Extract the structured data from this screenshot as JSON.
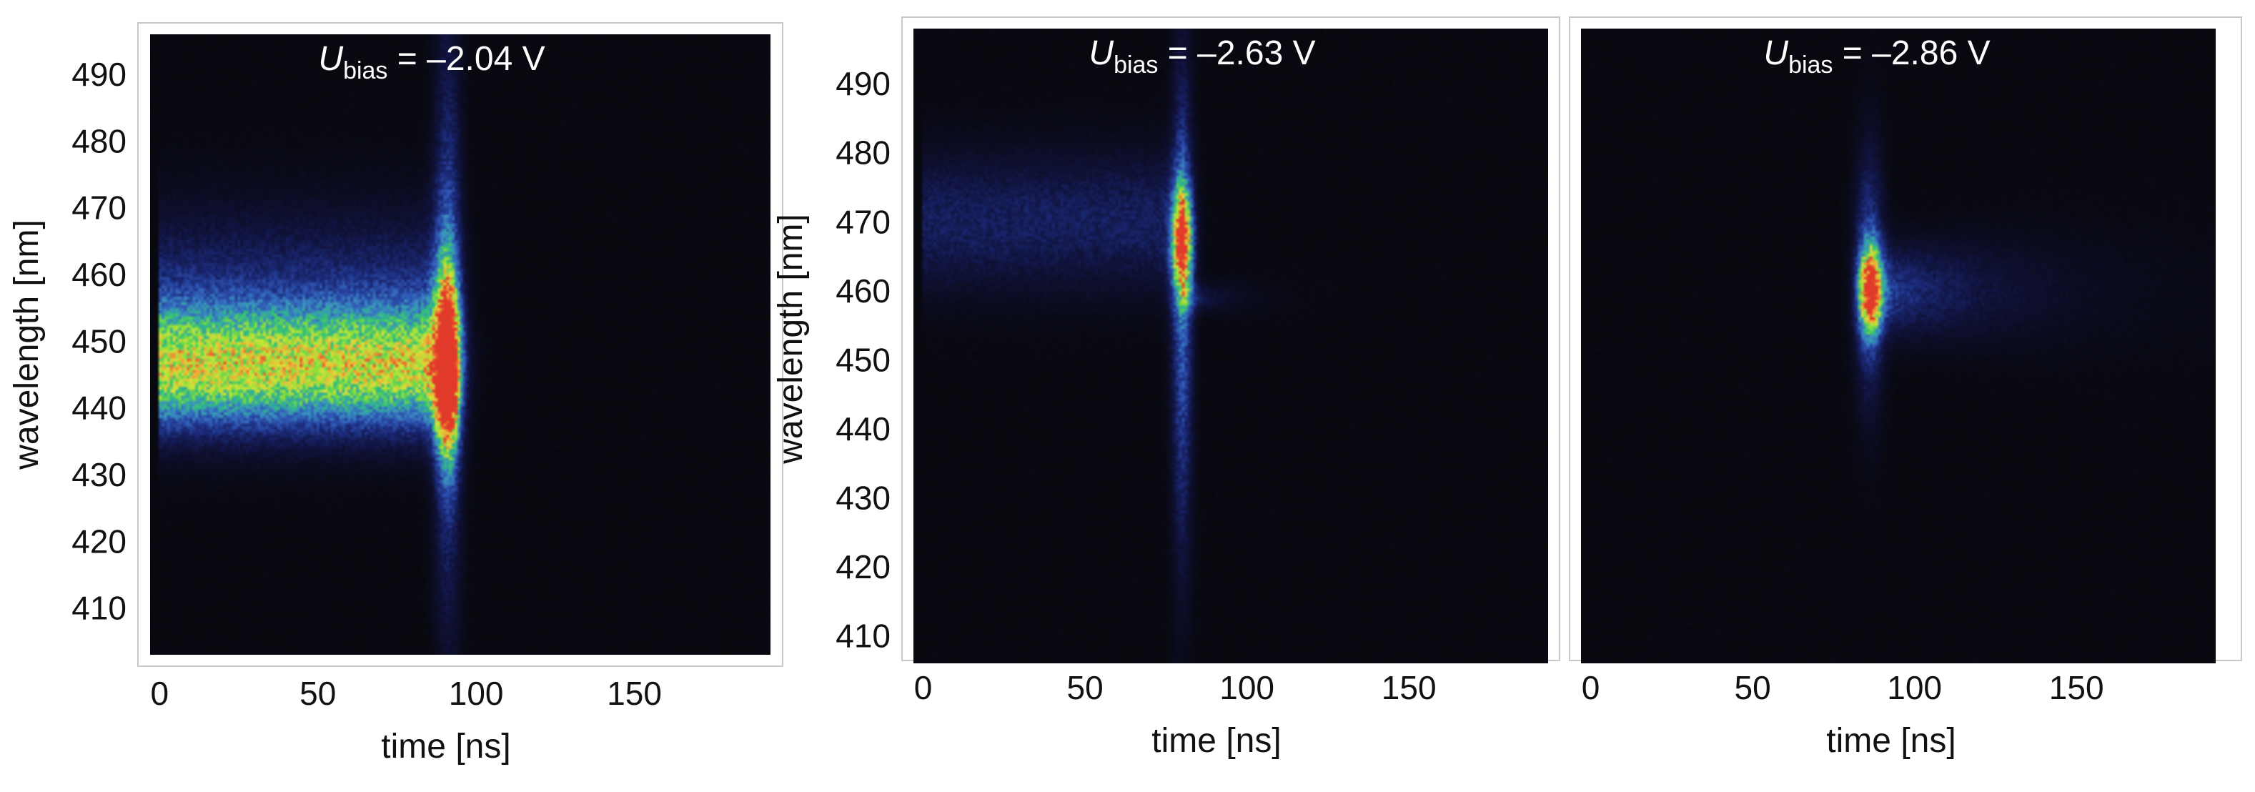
{
  "figure": {
    "colors": {
      "background": "#08080c",
      "frame": "#c8c8c8",
      "text_dark": "#111111",
      "text_light": "#ffffff"
    },
    "colormap": [
      "#08080c",
      "#10123a",
      "#1b2a78",
      "#2f55b5",
      "#3a93c0",
      "#2fbf7a",
      "#8be03a",
      "#d7e23a",
      "#f2a735",
      "#e23a2a"
    ]
  },
  "chart_data": [
    {
      "type": "heatmap",
      "title_main": "U",
      "title_sub": "bias",
      "title_rest": " = –2.04 V",
      "xlabel": "time [ns]",
      "ylabel": "wavelength [nm]",
      "xlim": [
        -3,
        193
      ],
      "ylim": [
        403,
        496
      ],
      "xticks": [
        0,
        50,
        100,
        150
      ],
      "yticks": [
        410,
        420,
        430,
        440,
        450,
        460,
        470,
        480,
        490
      ],
      "show_ylabel": true,
      "features": [
        {
          "kind": "band",
          "t0": 0,
          "t1": 92,
          "center": 446,
          "sigma": 6,
          "intensity": 0.64,
          "rise": 0
        },
        {
          "kind": "band",
          "t0": 0,
          "t1": 92,
          "center": 455,
          "sigma": 10,
          "intensity": 0.2,
          "rise": 0
        },
        {
          "kind": "peak",
          "t": 91,
          "center": 446,
          "sigma_w": 9,
          "sigma_t": 2.5,
          "intensity": 0.98
        },
        {
          "kind": "streak",
          "t": 91,
          "center": 452,
          "sigma_w": 30,
          "sigma_t": 3,
          "intensity": 0.28
        }
      ]
    },
    {
      "type": "heatmap",
      "title_main": "U",
      "title_sub": "bias",
      "title_rest": " = –2.63 V",
      "xlabel": "time [ns]",
      "ylabel": "wavelength [nm]",
      "xlim": [
        -3,
        193
      ],
      "ylim": [
        406,
        498
      ],
      "xticks": [
        0,
        50,
        100,
        150
      ],
      "yticks": [
        410,
        420,
        430,
        440,
        450,
        460,
        470,
        480,
        490
      ],
      "show_ylabel": true,
      "features": [
        {
          "kind": "band",
          "t0": 0,
          "t1": 80,
          "center": 470,
          "sigma": 7,
          "intensity": 0.16,
          "rise": 0
        },
        {
          "kind": "peak",
          "t": 80,
          "center": 467,
          "sigma_w": 5,
          "sigma_t": 2,
          "intensity": 0.9
        },
        {
          "kind": "streak",
          "t": 80,
          "center": 458,
          "sigma_w": 24,
          "sigma_t": 2.2,
          "intensity": 0.32
        },
        {
          "kind": "tail",
          "t": 80,
          "center": 459,
          "sigma_w": 1.2,
          "tau": 12,
          "intensity": 0.2
        }
      ]
    },
    {
      "type": "heatmap",
      "title_main": "U",
      "title_sub": "bias",
      "title_rest": " = –2.86 V",
      "xlabel": "time [ns]",
      "ylabel": "",
      "xlim": [
        -3,
        193
      ],
      "ylim": [
        406,
        498
      ],
      "xticks": [
        0,
        50,
        100,
        150
      ],
      "yticks": [],
      "show_ylabel": false,
      "features": [
        {
          "kind": "peak",
          "t": 86,
          "center": 460,
          "sigma_w": 4,
          "sigma_t": 2.2,
          "intensity": 0.98
        },
        {
          "kind": "streak",
          "t": 86,
          "center": 462,
          "sigma_w": 12,
          "sigma_t": 3,
          "intensity": 0.3
        },
        {
          "kind": "tail",
          "t": 86,
          "center": 460,
          "sigma_w": 4,
          "tau": 35,
          "intensity": 0.3
        }
      ]
    }
  ]
}
